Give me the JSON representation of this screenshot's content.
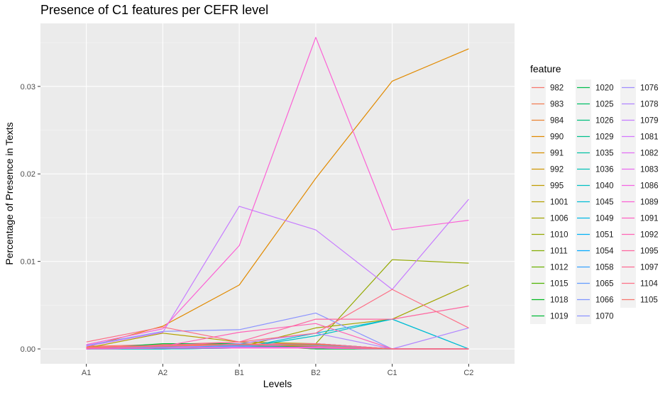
{
  "chart_data": {
    "type": "line",
    "title": "Presence of C1 features per CEFR level",
    "xlabel": "Levels",
    "ylabel": "Percentage of Presence in Texts",
    "categories": [
      "A1",
      "A2",
      "B1",
      "B2",
      "C1",
      "C2"
    ],
    "ylim": [
      -0.0017,
      0.0372
    ],
    "yticks": [
      0,
      0.01,
      0.02,
      0.03
    ],
    "ytick_labels": [
      "0.00",
      "0.01",
      "0.02",
      "0.03"
    ],
    "grid": true,
    "legend_title": "feature",
    "legend_position": "right",
    "series": [
      {
        "name": "982",
        "color": "#F8766D",
        "values": [
          0.0003,
          0.0005,
          0.0008,
          0.0005,
          0.0,
          0.0
        ]
      },
      {
        "name": "983",
        "color": "#F27D52",
        "values": [
          0.0002,
          0.0004,
          0.0006,
          0.0004,
          0.0,
          0.0
        ]
      },
      {
        "name": "984",
        "color": "#EA8331",
        "values": [
          0.0001,
          0.0003,
          0.0005,
          0.0003,
          0.0,
          0.0
        ]
      },
      {
        "name": "990",
        "color": "#E18A00",
        "values": [
          0.0002,
          0.0026,
          0.0073,
          0.0195,
          0.0306,
          0.0343
        ]
      },
      {
        "name": "991",
        "color": "#D89000",
        "values": [
          0.0001,
          0.0002,
          0.0003,
          0.0005,
          0.0,
          0.0
        ]
      },
      {
        "name": "992",
        "color": "#CD9600",
        "values": [
          0.0001,
          0.0002,
          0.0002,
          0.0004,
          0.0,
          0.0
        ]
      },
      {
        "name": "995",
        "color": "#C09B00",
        "values": [
          0.0001,
          0.0002,
          0.0003,
          0.0006,
          0.0,
          0.0
        ]
      },
      {
        "name": "1001",
        "color": "#B3A000",
        "values": [
          0.0001,
          0.0018,
          0.0008,
          0.0006,
          0.0,
          0.0
        ]
      },
      {
        "name": "1006",
        "color": "#A3A500",
        "values": [
          0.0,
          0.0001,
          0.0002,
          0.0024,
          0.0034,
          0.0073
        ]
      },
      {
        "name": "1010",
        "color": "#94A900",
        "values": [
          0.0,
          0.0,
          0.0002,
          0.0006,
          0.0102,
          0.0098
        ]
      },
      {
        "name": "1011",
        "color": "#82AD00",
        "values": [
          0.0,
          0.0001,
          0.0001,
          0.0003,
          0.0,
          0.0
        ]
      },
      {
        "name": "1012",
        "color": "#6BB100",
        "values": [
          0.0,
          0.0001,
          0.0002,
          0.0003,
          0.0,
          0.0
        ]
      },
      {
        "name": "1015",
        "color": "#4DB400",
        "values": [
          0.0001,
          0.0003,
          0.0004,
          0.0,
          0.0,
          0.0
        ]
      },
      {
        "name": "1018",
        "color": "#00B81F",
        "values": [
          0.0,
          0.0002,
          0.0003,
          0.0003,
          0.0,
          0.0
        ]
      },
      {
        "name": "1019",
        "color": "#00BA38",
        "values": [
          0.0,
          0.0006,
          0.0006,
          0.0,
          0.0,
          0.0
        ]
      },
      {
        "name": "1020",
        "color": "#00BC4D",
        "values": [
          0.0,
          0.0002,
          0.0005,
          0.0,
          0.0,
          0.0
        ]
      },
      {
        "name": "1025",
        "color": "#00BE67",
        "values": [
          0.0,
          0.0001,
          0.0002,
          0.0002,
          0.0,
          0.0
        ]
      },
      {
        "name": "1026",
        "color": "#00BF7D",
        "values": [
          0.0,
          0.0001,
          0.0001,
          0.0001,
          0.0,
          0.0
        ]
      },
      {
        "name": "1029",
        "color": "#00C08D",
        "values": [
          0.0,
          0.0001,
          0.0002,
          0.0002,
          0.0,
          0.0
        ]
      },
      {
        "name": "1035",
        "color": "#00C1A3",
        "values": [
          0.0,
          0.0001,
          0.0001,
          0.0002,
          0.0,
          0.0
        ]
      },
      {
        "name": "1036",
        "color": "#00C0B8",
        "values": [
          0.0,
          0.0,
          0.0001,
          0.0001,
          0.0,
          0.0
        ]
      },
      {
        "name": "1040",
        "color": "#00BFC4",
        "values": [
          0.0,
          0.0,
          0.0001,
          0.0015,
          0.0034,
          0.0
        ]
      },
      {
        "name": "1045",
        "color": "#00BCD6",
        "values": [
          0.0,
          0.0,
          0.0001,
          0.0018,
          0.0034,
          0.0
        ]
      },
      {
        "name": "1049",
        "color": "#00B8E7",
        "values": [
          0.0,
          0.0001,
          0.0002,
          0.0002,
          0.0,
          0.0
        ]
      },
      {
        "name": "1051",
        "color": "#00B0F6",
        "values": [
          0.0,
          0.0001,
          0.0001,
          0.0001,
          0.0,
          0.0
        ]
      },
      {
        "name": "1054",
        "color": "#00A9FF",
        "values": [
          0.0,
          0.0001,
          0.0002,
          0.0002,
          0.0,
          0.0
        ]
      },
      {
        "name": "1058",
        "color": "#35A2FF",
        "values": [
          0.0,
          0.0001,
          0.0001,
          0.0001,
          0.0,
          0.0
        ]
      },
      {
        "name": "1065",
        "color": "#619CFF",
        "values": [
          0.0001,
          0.0002,
          0.0004,
          0.0006,
          0.0,
          0.0
        ]
      },
      {
        "name": "1066",
        "color": "#7F96FF",
        "values": [
          0.0,
          0.0001,
          0.0003,
          0.0004,
          0.0,
          0.0
        ]
      },
      {
        "name": "1070",
        "color": "#8B93FF",
        "values": [
          0.0004,
          0.002,
          0.0022,
          0.0041,
          0.0,
          0.0
        ]
      },
      {
        "name": "1076",
        "color": "#9F8CFF",
        "values": [
          0.0,
          0.0001,
          0.0001,
          0.0001,
          0.0,
          0.0
        ]
      },
      {
        "name": "1078",
        "color": "#B186FF",
        "values": [
          0.0,
          0.0001,
          0.0006,
          0.0018,
          0.0,
          0.0024
        ]
      },
      {
        "name": "1079",
        "color": "#C77CFF",
        "values": [
          0.0003,
          0.0019,
          0.0163,
          0.0136,
          0.0068,
          0.0171
        ]
      },
      {
        "name": "1081",
        "color": "#D376FF",
        "values": [
          0.0,
          0.0001,
          0.0002,
          0.0002,
          0.0,
          0.0
        ]
      },
      {
        "name": "1082",
        "color": "#E36EF6",
        "values": [
          0.0,
          0.0001,
          0.0001,
          0.0001,
          0.0,
          0.0
        ]
      },
      {
        "name": "1083",
        "color": "#EB69F0",
        "values": [
          0.0,
          0.0001,
          0.0001,
          0.0001,
          0.0,
          0.0
        ]
      },
      {
        "name": "1086",
        "color": "#F564E3",
        "values": [
          0.0,
          0.0001,
          0.0001,
          0.0002,
          0.0,
          0.0
        ]
      },
      {
        "name": "1089",
        "color": "#FC61D5",
        "values": [
          0.0005,
          0.0023,
          0.0118,
          0.0356,
          0.0136,
          0.0147
        ]
      },
      {
        "name": "1091",
        "color": "#FF61C3",
        "values": [
          0.0,
          0.0001,
          0.0001,
          0.0001,
          0.0,
          0.0
        ]
      },
      {
        "name": "1092",
        "color": "#FF63B6",
        "values": [
          0.0001,
          0.0003,
          0.0019,
          0.0029,
          0.0,
          0.0
        ]
      },
      {
        "name": "1095",
        "color": "#FF659F",
        "values": [
          0.0002,
          0.0004,
          0.0008,
          0.0034,
          0.0034,
          0.0049
        ]
      },
      {
        "name": "1097",
        "color": "#FF6A92",
        "values": [
          0.0001,
          0.0003,
          0.0005,
          0.0006,
          0.0,
          0.0
        ]
      },
      {
        "name": "1104",
        "color": "#FD6F86",
        "values": [
          0.0008,
          0.0025,
          0.0008,
          0.0018,
          0.0068,
          0.0024
        ]
      },
      {
        "name": "1105",
        "color": "#F8766D",
        "values": [
          0.0002,
          0.0003,
          0.0005,
          0.0003,
          0.0,
          0.0
        ]
      }
    ]
  }
}
